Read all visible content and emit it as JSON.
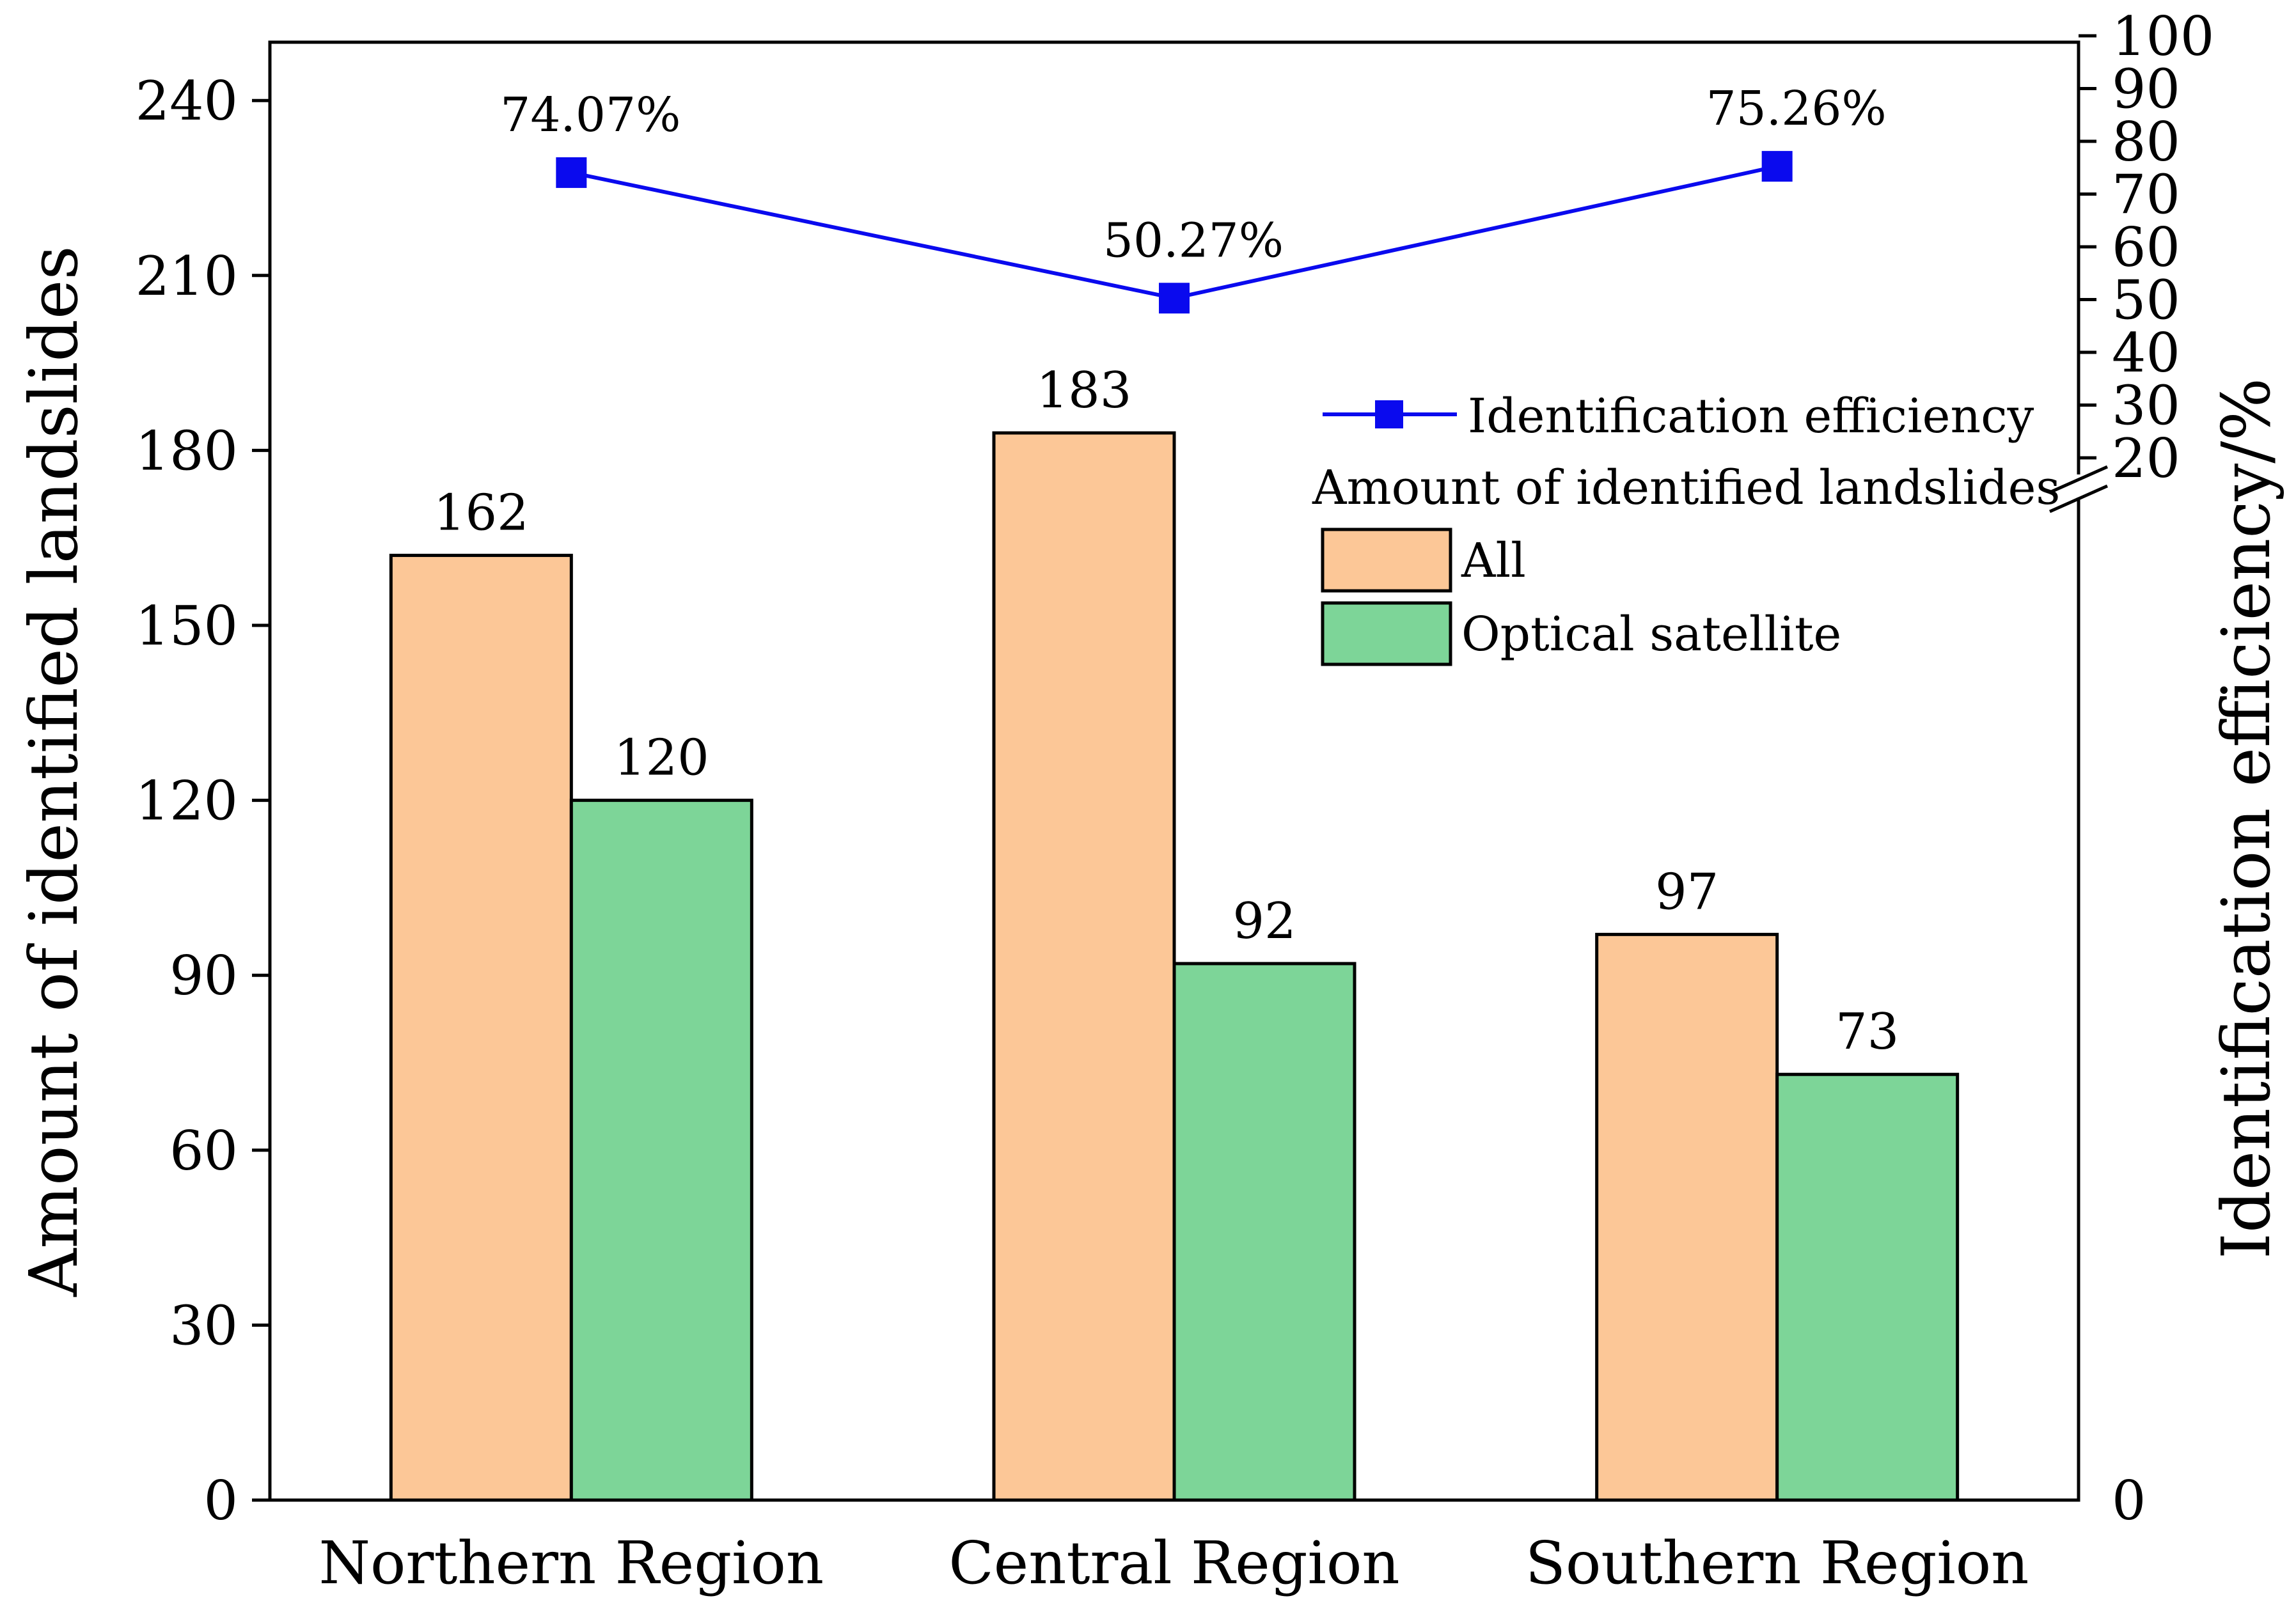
{
  "chart_data": {
    "type": "bar",
    "categories": [
      "Northern Region",
      "Central Region",
      "Southern Region"
    ],
    "series": [
      {
        "name": "All",
        "values": [
          162,
          183,
          97
        ],
        "color": "#FCC797",
        "label_values": [
          "162",
          "183",
          "97"
        ]
      },
      {
        "name": "Optical satellite",
        "values": [
          120,
          92,
          73
        ],
        "color": "#7DD598",
        "label_values": [
          "120",
          "92",
          "73"
        ]
      }
    ],
    "line_series": {
      "name": "Identification efficiency",
      "values": [
        74.07,
        50.27,
        75.26
      ],
      "labels": [
        "74.07%",
        "50.27%",
        "75.26%"
      ],
      "color": "#0A0AEE"
    },
    "ylabel": "Amount of identified landslides",
    "y2label": "Identification efficiency/%",
    "ylim": [
      0,
      250
    ],
    "yticks": [
      0,
      30,
      60,
      90,
      120,
      150,
      180,
      210,
      240
    ],
    "y2lim": [
      0,
      100
    ],
    "y2_break_range": [
      0,
      20
    ],
    "y2ticks": [
      20,
      30,
      40,
      50,
      60,
      70,
      80,
      90,
      100
    ],
    "y2_bottom_label": "0",
    "legend": {
      "line_entry": "Identification efficiency",
      "group_title": "Amount of identified landslides",
      "bar_entries": [
        "All",
        "Optical satellite"
      ],
      "position": "top-right"
    },
    "grid": false
  }
}
